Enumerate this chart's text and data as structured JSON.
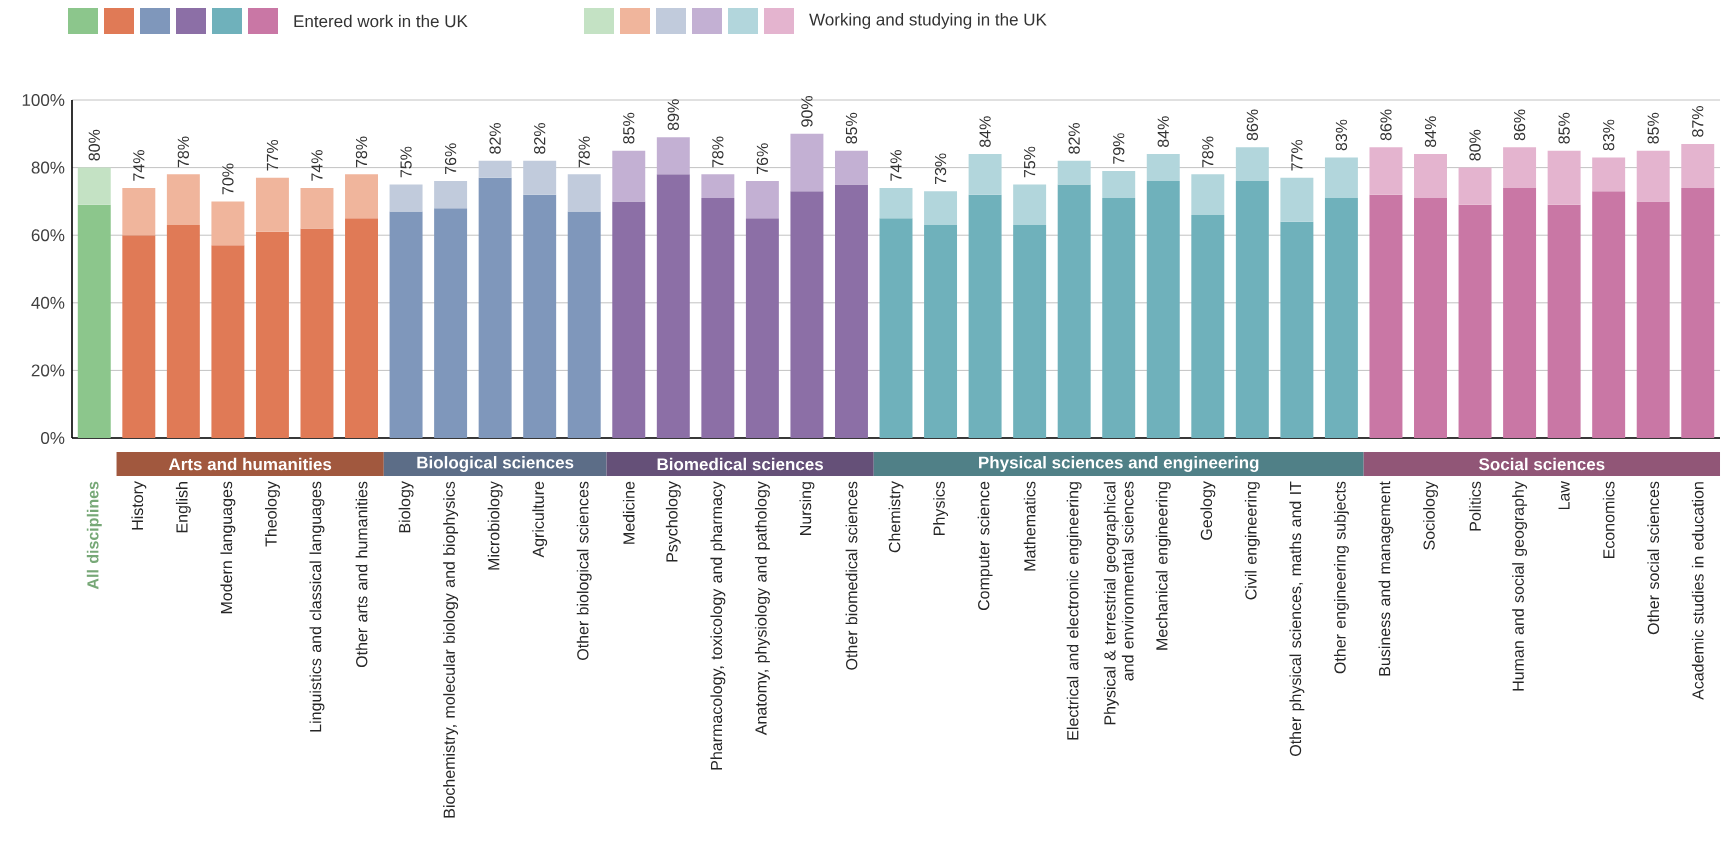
{
  "chart_data": {
    "type": "bar",
    "stacked": true,
    "categories": [
      "All disciplines",
      "History",
      "English",
      "Modern languages",
      "Theology",
      "Linguistics and classical languages",
      "Other arts and humanities",
      "Biology",
      "Biochemistry, molecular biology and biophysics",
      "Microbiology",
      "Agriculture",
      "Other biological sciences",
      "Medicine",
      "Psychology",
      "Pharmacology, toxicology and pharmacy",
      "Anatomy, physiology and pathology",
      "Nursing",
      "Other biomedical sciences",
      "Chemistry",
      "Physics",
      "Computer science",
      "Mathematics",
      "Electrical and electronic engineering",
      "Physical & terrestrial geographical and environmental sciences",
      "Mechanical engineering",
      "Geology",
      "Civil engineering",
      "Other physical sciences, maths and IT",
      "Other engineering subjects",
      "Business and management",
      "Sociology",
      "Politics",
      "Human and social geography",
      "Law",
      "Economics",
      "Other social sciences",
      "Academic studies in education"
    ],
    "series": [
      {
        "name": "Entered work in the UK",
        "values": [
          69,
          60,
          63,
          57,
          61,
          62,
          65,
          67,
          68,
          77,
          72,
          67,
          70,
          78,
          71,
          65,
          73,
          75,
          65,
          63,
          72,
          63,
          75,
          71,
          76,
          66,
          76,
          64,
          71,
          72,
          71,
          69,
          74,
          69,
          73,
          70,
          74
        ],
        "colors": [
          "#8cc68c",
          "#e07a56",
          "#e07a56",
          "#e07a56",
          "#e07a56",
          "#e07a56",
          "#e07a56",
          "#7f97bb",
          "#7f97bb",
          "#7f97bb",
          "#7f97bb",
          "#7f97bb",
          "#8c6fa6",
          "#8c6fa6",
          "#8c6fa6",
          "#8c6fa6",
          "#8c6fa6",
          "#8c6fa6",
          "#6fb1bb",
          "#6fb1bb",
          "#6fb1bb",
          "#6fb1bb",
          "#6fb1bb",
          "#6fb1bb",
          "#6fb1bb",
          "#6fb1bb",
          "#6fb1bb",
          "#6fb1bb",
          "#6fb1bb",
          "#c977a5",
          "#c977a5",
          "#c977a5",
          "#c977a5",
          "#c977a5",
          "#c977a5",
          "#c977a5",
          "#c977a5"
        ]
      },
      {
        "name": "Working and studying in the UK",
        "values": [
          11,
          14,
          15,
          13,
          16,
          12,
          13,
          8,
          8,
          5,
          10,
          11,
          15,
          11,
          7,
          11,
          17,
          10,
          9,
          10,
          12,
          12,
          7,
          8,
          8,
          12,
          10,
          13,
          12,
          14,
          13,
          11,
          12,
          16,
          10,
          15,
          13
        ],
        "colors": [
          "#c4e2c4",
          "#f0b59c",
          "#f0b59c",
          "#f0b59c",
          "#f0b59c",
          "#f0b59c",
          "#f0b59c",
          "#c1cbdc",
          "#c1cbdc",
          "#c1cbdc",
          "#c1cbdc",
          "#c1cbdc",
          "#c3b0d3",
          "#c3b0d3",
          "#c3b0d3",
          "#c3b0d3",
          "#c3b0d3",
          "#c3b0d3",
          "#b2d6dc",
          "#b2d6dc",
          "#b2d6dc",
          "#b2d6dc",
          "#b2d6dc",
          "#b2d6dc",
          "#b2d6dc",
          "#b2d6dc",
          "#b2d6dc",
          "#b2d6dc",
          "#b2d6dc",
          "#e4b4cf",
          "#e4b4cf",
          "#e4b4cf",
          "#e4b4cf",
          "#e4b4cf",
          "#e4b4cf",
          "#e4b4cf",
          "#e4b4cf"
        ]
      }
    ],
    "totals": [
      "80%",
      "74%",
      "78%",
      "70%",
      "77%",
      "74%",
      "78%",
      "75%",
      "76%",
      "82%",
      "82%",
      "78%",
      "85%",
      "89%",
      "78%",
      "76%",
      "90%",
      "85%",
      "74%",
      "73%",
      "84%",
      "75%",
      "82%",
      "79%",
      "84%",
      "78%",
      "86%",
      "77%",
      "83%",
      "86%",
      "84%",
      "80%",
      "86%",
      "85%",
      "83%",
      "85%",
      "87%"
    ],
    "annotations": [
      "Arts and humanities",
      "Biological sciences",
      "Biomedical sciences",
      "Physical sciences and engineering",
      "Social sciences"
    ],
    "ylim": [
      0,
      100
    ],
    "yticks": [
      {
        "value": 0,
        "label": "0%"
      },
      {
        "value": 20,
        "label": "20%"
      },
      {
        "value": 40,
        "label": "40%"
      },
      {
        "value": 60,
        "label": "60%"
      },
      {
        "value": 80,
        "label": "80%"
      },
      {
        "value": 100,
        "label": "100%"
      }
    ],
    "grid": "y",
    "legend": "top left"
  }
}
